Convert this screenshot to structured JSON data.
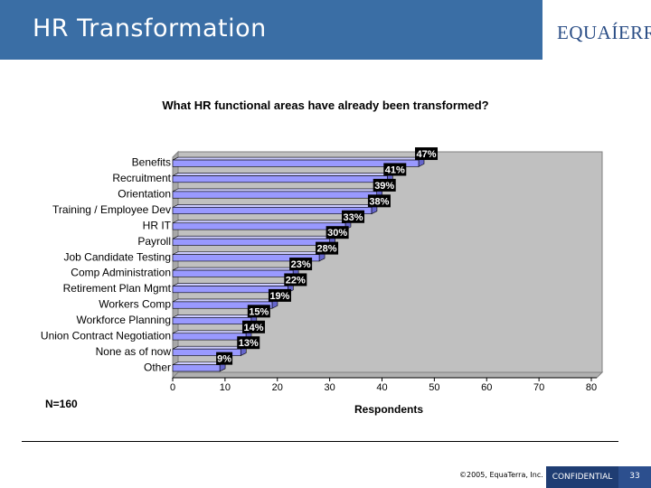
{
  "header": {
    "title": "HR Transformation",
    "logo_text": "EQUAÍERRA"
  },
  "colors": {
    "header_bg": "#3a6ea5",
    "bar_fill": "#9999ff",
    "plot_bg": "#c0c0c0",
    "label_bg": "#000000",
    "footer_dark": "#1f3d73"
  },
  "chart_data": {
    "type": "bar",
    "orientation": "horizontal",
    "title": "What HR functional areas have already been transformed?",
    "xlabel": "Respondents",
    "ylabel": "",
    "categories": [
      "Benefits",
      "Recruitment",
      "Orientation",
      "Training / Employee Dev",
      "HR IT",
      "Payroll",
      "Job Candidate Testing",
      "Comp Administration",
      "Retirement Plan Mgmt",
      "Workers Comp",
      "Workforce Planning",
      "Union Contract Negotiation",
      "None as of now",
      "Other"
    ],
    "values": [
      47,
      41,
      39,
      38,
      33,
      30,
      28,
      23,
      22,
      19,
      15,
      14,
      13,
      9
    ],
    "data_labels": [
      "47%",
      "41%",
      "39%",
      "38%",
      "33%",
      "30%",
      "28%",
      "23%",
      "22%",
      "19%",
      "15%",
      "14%",
      "13%",
      "9%"
    ],
    "xlim": [
      0,
      80
    ],
    "xticks": [
      "0",
      "10",
      "20",
      "30",
      "40",
      "50",
      "60",
      "70",
      "80"
    ],
    "grid": false,
    "legend": "none",
    "note": "N=160"
  },
  "footer": {
    "copyright": "©2005, EquaTerra, Inc.",
    "confidential": "CONFIDENTIAL",
    "page_number": "33"
  }
}
